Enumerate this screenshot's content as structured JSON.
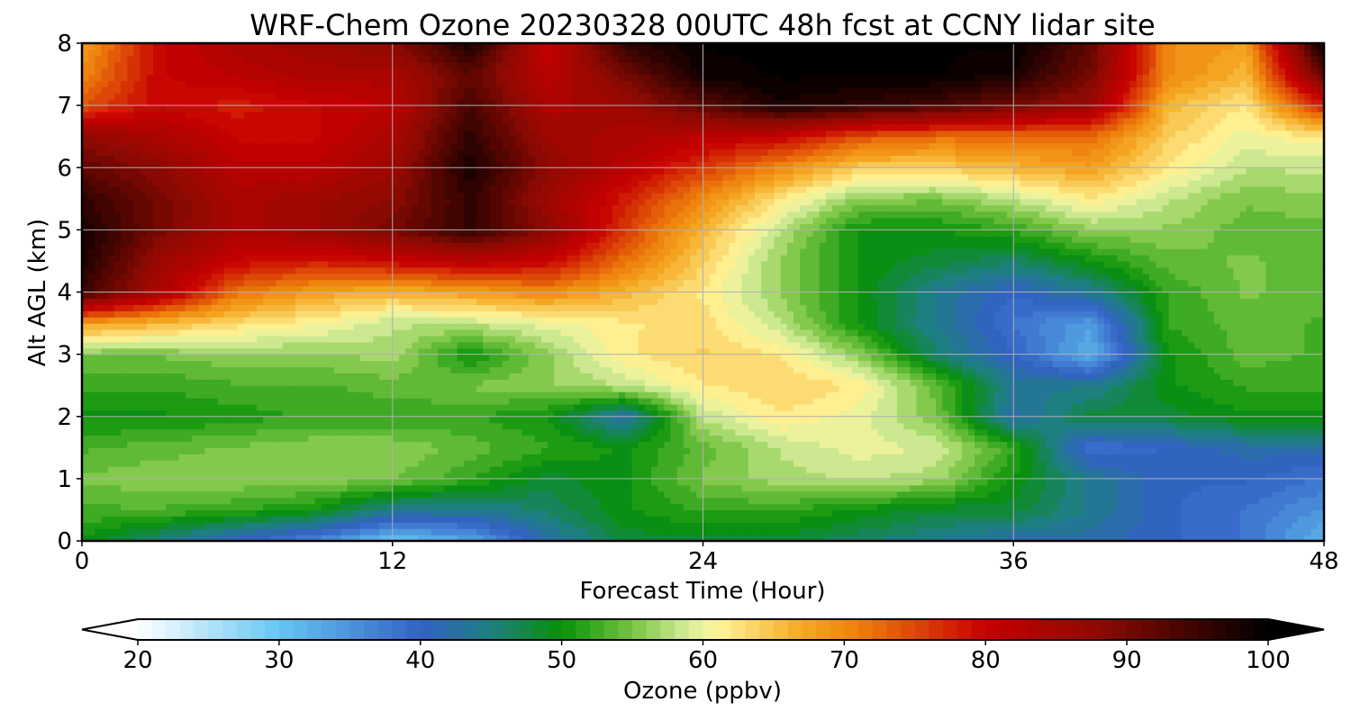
{
  "chart_data": {
    "type": "heatmap",
    "title": "WRF-Chem Ozone  20230328 00UTC 48h fcst at CCNY lidar site",
    "xlabel": "Forecast Time (Hour)",
    "ylabel": "Alt AGL (km)",
    "xlim": [
      0,
      48
    ],
    "ylim": [
      0,
      8
    ],
    "x_ticks": [
      0,
      12,
      24,
      36,
      48
    ],
    "y_ticks": [
      0,
      1,
      2,
      3,
      4,
      5,
      6,
      7,
      8
    ],
    "grid": true,
    "x": [
      0,
      3,
      6,
      9,
      12,
      15,
      18,
      21,
      24,
      27,
      30,
      33,
      36,
      39,
      42,
      45,
      48
    ],
    "y": [
      0,
      0.5,
      1,
      1.5,
      2,
      2.5,
      3,
      3.5,
      4,
      4.5,
      5,
      5.5,
      6,
      6.5,
      7,
      7.5,
      8
    ],
    "z": [
      [
        50,
        45,
        40,
        36,
        30,
        33,
        42,
        48,
        48,
        48,
        46,
        44,
        42,
        42,
        40,
        38,
        32
      ],
      [
        53,
        53,
        52,
        50,
        44,
        44,
        46,
        50,
        52,
        52,
        50,
        48,
        48,
        44,
        40,
        38,
        35
      ],
      [
        55,
        56,
        56,
        56,
        55,
        52,
        48,
        50,
        55,
        57,
        58,
        57,
        50,
        44,
        40,
        40,
        38
      ],
      [
        53,
        54,
        55,
        56,
        56,
        54,
        52,
        50,
        54,
        58,
        60,
        59,
        52,
        38,
        40,
        42,
        42
      ],
      [
        50,
        50,
        51,
        52,
        52,
        52,
        50,
        42,
        58,
        62,
        60,
        55,
        42,
        48,
        48,
        50,
        50
      ],
      [
        52,
        52,
        53,
        53,
        54,
        55,
        56,
        58,
        62,
        64,
        62,
        54,
        44,
        44,
        50,
        52,
        52
      ],
      [
        55,
        55,
        56,
        56,
        57,
        50,
        56,
        62,
        64,
        62,
        56,
        46,
        40,
        32,
        50,
        54,
        53
      ],
      [
        68,
        66,
        63,
        61,
        58,
        58,
        60,
        62,
        63,
        58,
        50,
        44,
        38,
        34,
        52,
        54,
        53
      ],
      [
        95,
        84,
        72,
        68,
        66,
        68,
        70,
        66,
        62,
        56,
        50,
        44,
        40,
        44,
        52,
        55,
        54
      ],
      [
        98,
        86,
        80,
        78,
        80,
        82,
        80,
        72,
        64,
        56,
        50,
        48,
        46,
        50,
        54,
        55,
        54
      ],
      [
        98,
        90,
        84,
        86,
        90,
        96,
        88,
        76,
        66,
        58,
        50,
        50,
        52,
        56,
        56,
        54,
        54
      ],
      [
        96,
        90,
        84,
        86,
        88,
        96,
        86,
        78,
        70,
        62,
        56,
        55,
        58,
        62,
        58,
        55,
        56
      ],
      [
        92,
        88,
        82,
        82,
        86,
        98,
        88,
        82,
        76,
        70,
        64,
        64,
        66,
        68,
        62,
        58,
        58
      ],
      [
        88,
        84,
        80,
        80,
        84,
        96,
        86,
        84,
        82,
        80,
        74,
        72,
        72,
        72,
        64,
        60,
        62
      ],
      [
        74,
        80,
        78,
        80,
        82,
        94,
        84,
        86,
        92,
        98,
        96,
        94,
        90,
        86,
        66,
        62,
        78
      ],
      [
        70,
        80,
        82,
        84,
        84,
        92,
        82,
        90,
        99,
        100,
        100,
        100,
        98,
        90,
        70,
        66,
        92
      ],
      [
        68,
        80,
        84,
        86,
        88,
        98,
        80,
        96,
        100,
        100,
        100,
        100,
        100,
        92,
        70,
        68,
        100
      ]
    ],
    "colorbar": {
      "label": "Ozone  (ppbv)",
      "min": 20,
      "max": 100,
      "ticks": [
        20,
        30,
        40,
        50,
        60,
        70,
        80,
        90,
        100
      ],
      "extend": "both",
      "colors": [
        {
          "v": 20,
          "c": "#ffffff"
        },
        {
          "v": 30,
          "c": "#66c6f2"
        },
        {
          "v": 40,
          "c": "#3361c6"
        },
        {
          "v": 45,
          "c": "#1e7f80"
        },
        {
          "v": 50,
          "c": "#079107"
        },
        {
          "v": 55,
          "c": "#77c442"
        },
        {
          "v": 59,
          "c": "#d8ee9c"
        },
        {
          "v": 61,
          "c": "#fff59a"
        },
        {
          "v": 67,
          "c": "#f5a923"
        },
        {
          "v": 71,
          "c": "#ee7f0c"
        },
        {
          "v": 80,
          "c": "#c70000"
        },
        {
          "v": 88,
          "c": "#8e0a02"
        },
        {
          "v": 100,
          "c": "#000000"
        }
      ]
    }
  }
}
